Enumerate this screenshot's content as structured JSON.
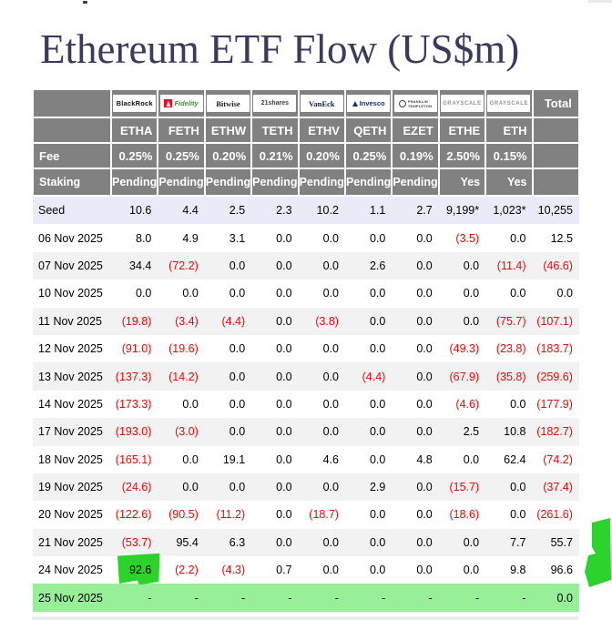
{
  "page": {
    "title": "Ethereum ETF Flow (US$m)"
  },
  "chart_data": {
    "type": "table",
    "title": "Ethereum ETF Flow (US$m)",
    "providers": [
      {
        "label": "BlackRock",
        "brand": "blackrock"
      },
      {
        "label": "Fidelity",
        "brand": "fidelity"
      },
      {
        "label": "Bitwise",
        "brand": "bitwise"
      },
      {
        "label": "21shares",
        "brand": "shares21"
      },
      {
        "label": "VanEck",
        "brand": "vaneck"
      },
      {
        "label": "Invesco",
        "brand": "invesco"
      },
      {
        "label": "FRANKLIN TEMPLETON",
        "brand": "franklin",
        "lines": [
          "FRANKLIN",
          "TEMPLETON"
        ]
      },
      {
        "label": "GRAYSCALE",
        "brand": "grayscale"
      },
      {
        "label": "GRAYSCALE",
        "brand": "grayscale"
      },
      {
        "label": "Total",
        "brand": "total"
      }
    ],
    "tickers": [
      "ETHA",
      "FETH",
      "ETHW",
      "TETH",
      "ETHV",
      "QETH",
      "EZET",
      "ETHE",
      "ETH",
      ""
    ],
    "header_rows": {
      "fee": {
        "label": "Fee",
        "values": [
          "0.25%",
          "0.25%",
          "0.20%",
          "0.21%",
          "0.20%",
          "0.25%",
          "0.19%",
          "2.50%",
          "0.15%",
          ""
        ]
      },
      "staking": {
        "label": "Staking",
        "values": [
          "Pending",
          "Pending",
          "Pending",
          "Pending",
          "Pending",
          "Pending",
          "Pending",
          "Yes",
          "Yes",
          ""
        ]
      }
    },
    "rows": [
      {
        "label": "Seed",
        "variant": "seed",
        "values": [
          "10.6",
          "4.4",
          "2.5",
          "2.3",
          "10.2",
          "1.1",
          "2.7",
          "9,199*",
          "1,023*",
          "10,255"
        ]
      },
      {
        "label": "06 Nov 2025",
        "values": [
          "8.0",
          "4.9",
          "3.1",
          "0.0",
          "0.0",
          "0.0",
          "0.0",
          "(3.5)",
          "0.0",
          "12.5"
        ]
      },
      {
        "label": "07 Nov 2025",
        "values": [
          "34.4",
          "(72.2)",
          "0.0",
          "0.0",
          "0.0",
          "2.6",
          "0.0",
          "0.0",
          "(11.4)",
          "(46.6)"
        ]
      },
      {
        "label": "10 Nov 2025",
        "values": [
          "0.0",
          "0.0",
          "0.0",
          "0.0",
          "0.0",
          "0.0",
          "0.0",
          "0.0",
          "0.0",
          "0.0"
        ]
      },
      {
        "label": "11 Nov 2025",
        "values": [
          "(19.8)",
          "(3.4)",
          "(4.4)",
          "0.0",
          "(3.8)",
          "0.0",
          "0.0",
          "0.0",
          "(75.7)",
          "(107.1)"
        ]
      },
      {
        "label": "12 Nov 2025",
        "values": [
          "(91.0)",
          "(19.6)",
          "0.0",
          "0.0",
          "0.0",
          "0.0",
          "0.0",
          "(49.3)",
          "(23.8)",
          "(183.7)"
        ]
      },
      {
        "label": "13 Nov 2025",
        "values": [
          "(137.3)",
          "(14.2)",
          "0.0",
          "0.0",
          "0.0",
          "(4.4)",
          "0.0",
          "(67.9)",
          "(35.8)",
          "(259.6)"
        ]
      },
      {
        "label": "14 Nov 2025",
        "values": [
          "(173.3)",
          "0.0",
          "0.0",
          "0.0",
          "0.0",
          "0.0",
          "0.0",
          "(4.6)",
          "0.0",
          "(177.9)"
        ]
      },
      {
        "label": "17 Nov 2025",
        "values": [
          "(193.0)",
          "(3.0)",
          "0.0",
          "0.0",
          "0.0",
          "0.0",
          "0.0",
          "2.5",
          "10.8",
          "(182.7)"
        ]
      },
      {
        "label": "18 Nov 2025",
        "values": [
          "(165.1)",
          "0.0",
          "19.1",
          "0.0",
          "4.6",
          "0.0",
          "4.8",
          "0.0",
          "62.4",
          "(74.2)"
        ]
      },
      {
        "label": "19 Nov 2025",
        "values": [
          "(24.6)",
          "0.0",
          "0.0",
          "0.0",
          "0.0",
          "2.9",
          "0.0",
          "(15.7)",
          "0.0",
          "(37.4)"
        ]
      },
      {
        "label": "20 Nov 2025",
        "values": [
          "(122.6)",
          "(90.5)",
          "(11.2)",
          "0.0",
          "(18.7)",
          "0.0",
          "0.0",
          "(18.6)",
          "0.0",
          "(261.6)"
        ]
      },
      {
        "label": "21 Nov 2025",
        "values": [
          "(53.7)",
          "95.4",
          "6.3",
          "0.0",
          "0.0",
          "0.0",
          "0.0",
          "0.0",
          "7.7",
          "55.7"
        ]
      },
      {
        "label": "24 Nov 2025",
        "highlight_cell": 0,
        "values": [
          "92.6",
          "(2.2)",
          "(4.3)",
          "0.7",
          "0.0",
          "0.0",
          "0.0",
          "0.0",
          "9.8",
          "96.6"
        ]
      },
      {
        "label": "25 Nov 2025",
        "variant": "future",
        "values": [
          "-",
          "-",
          "-",
          "-",
          "-",
          "-",
          "-",
          "-",
          "-",
          "0.0"
        ]
      }
    ],
    "colors": {
      "title": "#3a3a5c",
      "header_bg": "#818181",
      "seed_row_bg": "#e9ecf8",
      "stripe_bg": "#f2f2f2",
      "future_row_bg": "#97ef97",
      "negative": "#ff0000",
      "marker_green": "#2bd32b"
    },
    "notes": {
      "negative_format": "values in parentheses shown red",
      "annotations": "green marker highlight on 24 Nov ETHA cell (92.6) and green marker blob at right page edge"
    }
  }
}
